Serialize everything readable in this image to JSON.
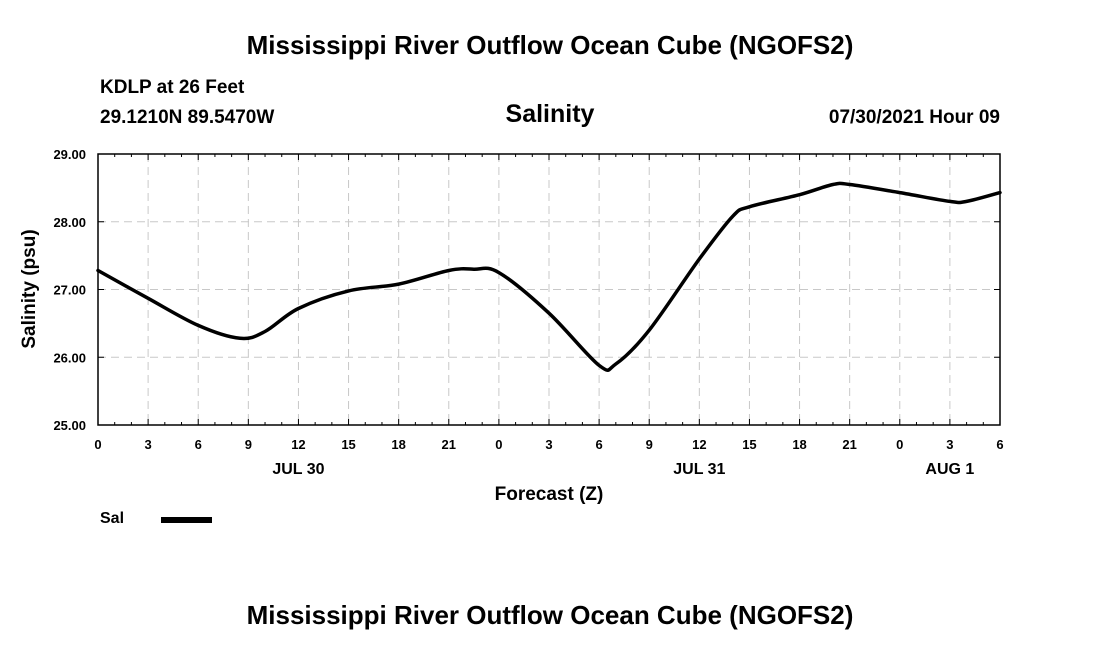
{
  "header": {
    "title": "Mississippi River Outflow Ocean Cube (NGOFS2)",
    "station": "KDLP at 26 Feet",
    "coords": "29.1210N  89.5470W",
    "datetime": "07/30/2021 Hour 09"
  },
  "footer": {
    "title": "Mississippi River Outflow Ocean Cube (NGOFS2)"
  },
  "legend": {
    "label": "Sal",
    "color": "#000000"
  },
  "chart_data": {
    "type": "line",
    "title": "Salinity",
    "xlabel": "Forecast (Z)",
    "ylabel": "Salinity (psu)",
    "xlim": [
      0,
      54
    ],
    "ylim": [
      25.0,
      29.0
    ],
    "grid": true,
    "x_ticks": [
      0,
      3,
      6,
      9,
      12,
      15,
      18,
      21,
      24,
      27,
      30,
      33,
      36,
      39,
      42,
      45,
      48,
      51,
      54
    ],
    "x_tick_labels": [
      "0",
      "3",
      "6",
      "9",
      "12",
      "15",
      "18",
      "21",
      "0",
      "3",
      "6",
      "9",
      "12",
      "15",
      "18",
      "21",
      "0",
      "3",
      "6"
    ],
    "y_ticks": [
      25.0,
      26.0,
      27.0,
      28.0,
      29.0
    ],
    "y_tick_labels": [
      "25.00",
      "26.00",
      "27.00",
      "28.00",
      "29.00"
    ],
    "date_labels": [
      {
        "x": 12,
        "label": "JUL 30"
      },
      {
        "x": 36,
        "label": "JUL 31"
      },
      {
        "x": 51,
        "label": "AUG 1"
      }
    ],
    "series": [
      {
        "name": "Sal",
        "x": [
          0,
          3,
          6,
          8.5,
          10,
          12,
          15,
          18,
          21,
          22.5,
          24,
          27,
          30,
          31,
          33,
          36,
          38,
          39,
          42,
          44,
          45,
          48,
          51,
          52,
          54
        ],
        "values": [
          27.28,
          26.87,
          26.47,
          26.28,
          26.38,
          26.72,
          26.98,
          27.08,
          27.28,
          27.3,
          27.25,
          26.65,
          25.88,
          25.9,
          26.4,
          27.45,
          28.08,
          28.22,
          28.4,
          28.55,
          28.55,
          28.43,
          28.3,
          28.3,
          28.43
        ]
      }
    ]
  }
}
